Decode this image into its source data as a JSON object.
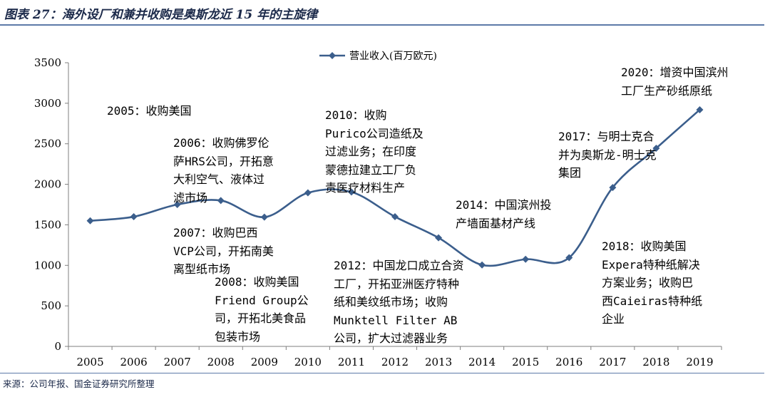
{
  "header": {
    "title": "图表 27：海外设厂和兼并收购是奥斯龙近 15 年的主旋律"
  },
  "footer": {
    "source": "来源：公司年报、国金证券研究所整理"
  },
  "colors": {
    "series": "#3b5e8c",
    "title": "#1c2a4a",
    "rule": "#5d7aa8"
  },
  "chart_data": {
    "type": "line",
    "title": "",
    "xlabel": "",
    "ylabel": "",
    "ylim": [
      0,
      3500
    ],
    "yticks": [
      0,
      500,
      1000,
      1500,
      2000,
      2500,
      3000,
      3500
    ],
    "x": [
      "2005",
      "2006",
      "2007",
      "2008",
      "2009",
      "2010",
      "2011",
      "2012",
      "2013",
      "2014",
      "2015",
      "2016",
      "2017",
      "2018",
      "2019"
    ],
    "series": [
      {
        "name": "营业收入(百万欧元)",
        "values": [
          1550,
          1600,
          1750,
          1800,
          1595,
          1895,
          1905,
          1600,
          1340,
          1005,
          1075,
          1095,
          1960,
          2445,
          2920
        ]
      }
    ],
    "legend": "top-center",
    "grid": false,
    "annotations": [
      {
        "id": "a2005",
        "lines": [
          "2005：收购美国"
        ]
      },
      {
        "id": "a2006",
        "lines": [
          "2006：收购佛罗伦",
          "萨HRS公司，开拓意",
          "大利空气、液体过",
          "滤市场"
        ]
      },
      {
        "id": "a2007",
        "lines": [
          "2007：收购巴西",
          "VCP公司，开拓南美",
          "离型纸市场"
        ]
      },
      {
        "id": "a2008",
        "lines": [
          "2008：收购美国",
          "Friend Group公",
          "司，开拓北美食品",
          "包装市场"
        ]
      },
      {
        "id": "a2010",
        "lines": [
          "2010：收购",
          "Purico公司造纸及",
          "过滤业务；在印度",
          "蒙德拉建立工厂负",
          "责医疗材料生产"
        ]
      },
      {
        "id": "a2012",
        "lines": [
          "2012：中国龙口成立合资",
          "工厂，开拓亚洲医疗特种",
          "纸和美纹纸市场；收购",
          "Munktell Filter AB",
          "公司，扩大过滤器业务"
        ]
      },
      {
        "id": "a2014",
        "lines": [
          "2014：中国滨州投",
          "产墙面基材产线"
        ]
      },
      {
        "id": "a2017",
        "lines": [
          "2017：与明士克合",
          "并为奥斯龙-明士克",
          "集团"
        ]
      },
      {
        "id": "a2018",
        "lines": [
          "2018：收购美国",
          "Expera特种纸解决",
          "方案业务；收购巴",
          "西Caieiras特种纸",
          "企业"
        ]
      },
      {
        "id": "a2020",
        "lines": [
          "2020：增资中国滨州",
          "工厂生产砂纸原纸"
        ]
      }
    ]
  }
}
